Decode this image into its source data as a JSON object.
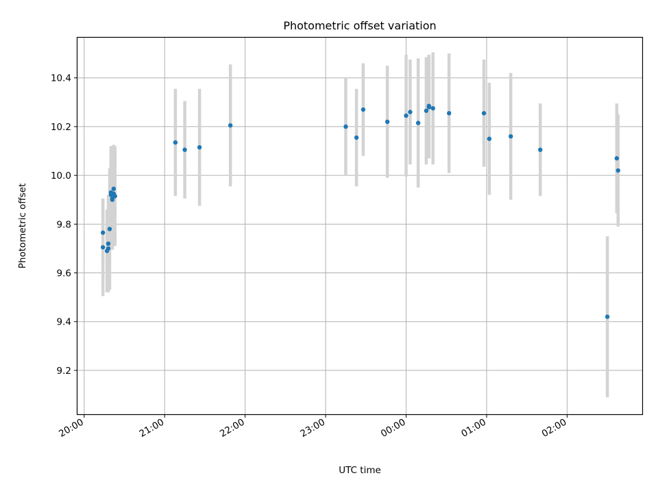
{
  "chart_data": {
    "type": "scatter",
    "title": "Photometric offset variation",
    "xlabel": "UTC time",
    "ylabel": "Photometric offset",
    "xlim": [
      "19:55",
      "26:56"
    ],
    "ylim": [
      9.02,
      10.565
    ],
    "grid": true,
    "x_ticks": [
      {
        "value": "20:00",
        "label": "20:00"
      },
      {
        "value": "21:00",
        "label": "21:00"
      },
      {
        "value": "22:00",
        "label": "22:00"
      },
      {
        "value": "23:00",
        "label": "23:00"
      },
      {
        "value": "24:00",
        "label": "00:00"
      },
      {
        "value": "25:00",
        "label": "01:00"
      },
      {
        "value": "26:00",
        "label": "02:00"
      }
    ],
    "y_ticks": [
      {
        "value": 9.2,
        "label": "9.2"
      },
      {
        "value": 9.4,
        "label": "9.4"
      },
      {
        "value": 9.6,
        "label": "9.6"
      },
      {
        "value": 9.8,
        "label": "9.8"
      },
      {
        "value": 10.0,
        "label": "10.0"
      },
      {
        "value": 10.2,
        "label": "10.2"
      },
      {
        "value": 10.4,
        "label": "10.4"
      }
    ],
    "points": [
      {
        "x": "20:14",
        "y": 9.705,
        "err": 0.2
      },
      {
        "x": "20:14",
        "y": 9.765,
        "err": 0.14
      },
      {
        "x": "20:17",
        "y": 9.69,
        "err": 0.17
      },
      {
        "x": "20:18",
        "y": 9.72,
        "err": 0.2
      },
      {
        "x": "20:18",
        "y": 9.7,
        "err": 0.16
      },
      {
        "x": "20:19",
        "y": 9.78,
        "err": 0.25
      },
      {
        "x": "20:20",
        "y": 9.93,
        "err": 0.19
      },
      {
        "x": "20:20",
        "y": 9.92,
        "err": 0.19
      },
      {
        "x": "20:21",
        "y": 9.905,
        "err": 0.21
      },
      {
        "x": "20:21",
        "y": 9.9,
        "err": 0.2
      },
      {
        "x": "20:22",
        "y": 9.925,
        "err": 0.2
      },
      {
        "x": "20:22",
        "y": 9.945,
        "err": 0.18
      },
      {
        "x": "20:23",
        "y": 9.915,
        "err": 0.205
      },
      {
        "x": "21:08",
        "y": 10.135,
        "err": 0.22
      },
      {
        "x": "21:15",
        "y": 10.105,
        "err": 0.2
      },
      {
        "x": "21:26",
        "y": 10.115,
        "err": 0.24
      },
      {
        "x": "21:49",
        "y": 10.205,
        "err": 0.25
      },
      {
        "x": "23:15",
        "y": 10.2,
        "err": 0.2
      },
      {
        "x": "23:23",
        "y": 10.155,
        "err": 0.2
      },
      {
        "x": "23:28",
        "y": 10.27,
        "err": 0.19
      },
      {
        "x": "23:46",
        "y": 10.22,
        "err": 0.23
      },
      {
        "x": "24:00",
        "y": 10.245,
        "err": 0.25
      },
      {
        "x": "24:03",
        "y": 10.26,
        "err": 0.215
      },
      {
        "x": "24:09",
        "y": 10.215,
        "err": 0.265
      },
      {
        "x": "24:15",
        "y": 10.265,
        "err": 0.22
      },
      {
        "x": "24:17",
        "y": 10.28,
        "err": 0.21
      },
      {
        "x": "24:17",
        "y": 10.285,
        "err": 0.21
      },
      {
        "x": "24:20",
        "y": 10.275,
        "err": 0.23
      },
      {
        "x": "24:32",
        "y": 10.255,
        "err": 0.245
      },
      {
        "x": "24:58",
        "y": 10.255,
        "err": 0.22
      },
      {
        "x": "25:02",
        "y": 10.15,
        "err": 0.23
      },
      {
        "x": "25:18",
        "y": 10.16,
        "err": 0.26
      },
      {
        "x": "25:40",
        "y": 10.105,
        "err": 0.19
      },
      {
        "x": "26:30",
        "y": 9.42,
        "err": 0.33
      },
      {
        "x": "26:37",
        "y": 10.07,
        "err": 0.225
      },
      {
        "x": "26:38",
        "y": 10.02,
        "err": 0.23
      }
    ],
    "colors": {
      "point": "#1f77b4",
      "errorbar": "#d3d3d3",
      "grid": "#b0b0b0",
      "axes": "#000000"
    }
  }
}
